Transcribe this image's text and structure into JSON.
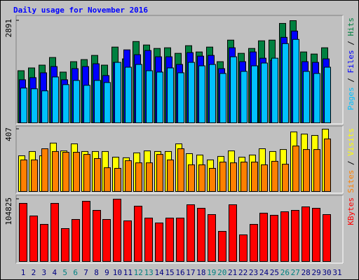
{
  "title": "Daily usage for November 2016",
  "legend_separator": " / ",
  "chart_data": [
    {
      "type": "bar",
      "categories": [
        "1",
        "2",
        "3",
        "4",
        "5",
        "6",
        "7",
        "8",
        "9",
        "10",
        "11",
        "12",
        "13",
        "14",
        "15",
        "16",
        "17",
        "18",
        "19",
        "20",
        "21",
        "22",
        "23",
        "24",
        "25",
        "26",
        "27",
        "28",
        "29",
        "30",
        "31"
      ],
      "category_colors": [
        "#000080",
        "#000080",
        "#000080",
        "#000080",
        "#008080",
        "#008080",
        "#000080",
        "#000080",
        "#000080",
        "#000080",
        "#000080",
        "#008080",
        "#008080",
        "#000080",
        "#000080",
        "#000080",
        "#000080",
        "#000080",
        "#008080",
        "#008080",
        "#000080",
        "#000080",
        "#000080",
        "#000080",
        "#000080",
        "#008080",
        "#008080",
        "#000080",
        "#000080",
        "#000080",
        "#000080"
      ],
      "ylim": [
        0,
        2891
      ],
      "yticks": [
        2891
      ],
      "series": [
        {
          "name": "Hits",
          "color": "#008040",
          "values": [
            1475,
            1554,
            1633,
            1849,
            1436,
            1731,
            1790,
            1908,
            1633,
            2144,
            1810,
            2301,
            2203,
            2105,
            2124,
            1967,
            2183,
            2006,
            2144,
            1731,
            2341,
            1967,
            2105,
            2321,
            2341,
            2813,
            2891,
            2006,
            1947,
            2124,
            null
          ]
        },
        {
          "name": "Files",
          "color": "#0000ff",
          "values": [
            1219,
            1279,
            1416,
            1593,
            1219,
            1534,
            1593,
            1672,
            1338,
            1711,
            2065,
            1928,
            2046,
            1869,
            1869,
            1652,
            1987,
            1888,
            1908,
            1534,
            2124,
            1731,
            2006,
            1829,
            1770,
            2419,
            2597,
            1731,
            1711,
            1810,
            null
          ]
        },
        {
          "name": "Pages",
          "color": "#00c0ff",
          "values": [
            984,
            964,
            905,
            1298,
            1082,
            1200,
            1062,
            1200,
            1141,
            1711,
            1574,
            1652,
            1475,
            1436,
            1554,
            1416,
            1711,
            1613,
            1652,
            1397,
            1869,
            1456,
            1613,
            1692,
            1829,
            2242,
            2361,
            1456,
            1397,
            1574,
            null
          ]
        }
      ]
    },
    {
      "type": "bar",
      "ylim": [
        0,
        407
      ],
      "yticks": [
        407
      ],
      "series": [
        {
          "name": "Visits",
          "color": "#ffff00",
          "values": [
            233,
            261,
            233,
            316,
            265,
            311,
            261,
            261,
            261,
            224,
            220,
            252,
            265,
            261,
            261,
            311,
            247,
            238,
            206,
            229,
            265,
            224,
            238,
            279,
            261,
            274,
            389,
            375,
            366,
            407,
            null
          ]
        },
        {
          "name": "Sites",
          "color": "#ff8000",
          "values": [
            206,
            206,
            279,
            261,
            256,
            256,
            242,
            215,
            155,
            151,
            201,
            187,
            187,
            242,
            206,
            279,
            174,
            174,
            151,
            192,
            187,
            192,
            192,
            174,
            197,
            178,
            297,
            274,
            274,
            343,
            null
          ]
        }
      ]
    },
    {
      "type": "bar",
      "ylim": [
        0,
        104825
      ],
      "yticks": [
        104825
      ],
      "series": [
        {
          "name": "KBytes",
          "color": "#ff0000",
          "values": [
            97760,
            76560,
            62420,
            97760,
            55360,
            70670,
            101290,
            85980,
            70670,
            104825,
            68310,
            93050,
            73020,
            64780,
            73020,
            73020,
            95400,
            89510,
            78910,
            50650,
            95400,
            44760,
            62420,
            81270,
            77730,
            83620,
            85980,
            91870,
            89510,
            78910,
            null
          ]
        }
      ]
    }
  ]
}
